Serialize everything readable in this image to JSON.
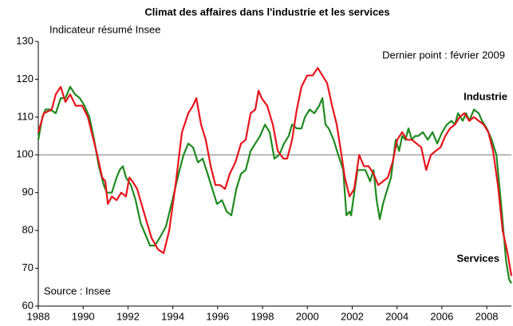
{
  "chart_data": {
    "type": "line",
    "title": "Climat des affaires dans l'industrie et les services",
    "ylabel": "Indicateur résumé Insee",
    "annotations": [
      "Dernier point : février 2009",
      "Source : Insee"
    ],
    "reference_line": 100,
    "xlim": [
      1988,
      2009.1
    ],
    "ylim": [
      60,
      130
    ],
    "xticks": [
      1988,
      1990,
      1992,
      1994,
      1996,
      1998,
      2000,
      2002,
      2004,
      2006,
      2008
    ],
    "yticks": [
      60,
      70,
      80,
      90,
      100,
      110,
      120,
      130
    ],
    "grid": false,
    "series": [
      {
        "name": "Industrie",
        "color": "#1f8a1f",
        "x": [
          1988.0,
          1988.18,
          1988.32,
          1988.53,
          1988.78,
          1989.0,
          1989.21,
          1989.42,
          1989.64,
          1989.85,
          1990.06,
          1990.28,
          1990.49,
          1990.7,
          1990.92,
          1991.06,
          1991.28,
          1991.49,
          1991.63,
          1991.77,
          1991.91,
          1992.13,
          1992.34,
          1992.56,
          1992.77,
          1992.98,
          1993.2,
          1993.41,
          1993.69,
          1993.98,
          1994.26,
          1994.48,
          1994.69,
          1994.9,
          1995.12,
          1995.33,
          1995.55,
          1995.76,
          1995.97,
          1996.19,
          1996.4,
          1996.61,
          1996.83,
          1997.04,
          1997.25,
          1997.47,
          1997.68,
          1997.89,
          1998.11,
          1998.32,
          1998.53,
          1998.75,
          1998.96,
          1999.17,
          1999.32,
          1999.53,
          1999.74,
          1999.89,
          2000.1,
          2000.31,
          2000.53,
          2000.67,
          2000.81,
          2000.95,
          2001.17,
          2001.38,
          2001.6,
          2001.74,
          2001.88,
          2001.95,
          2002.09,
          2002.24,
          2002.38,
          2002.59,
          2002.8,
          2002.95,
          2003.09,
          2003.23,
          2003.37,
          2003.52,
          2003.73,
          2003.94,
          2004.09,
          2004.23,
          2004.37,
          2004.51,
          2004.66,
          2004.8,
          2004.94,
          2005.15,
          2005.37,
          2005.58,
          2005.79,
          2006.01,
          2006.22,
          2006.43,
          2006.58,
          2006.72,
          2006.93,
          2007.08,
          2007.22,
          2007.43,
          2007.64,
          2007.79,
          2008.0,
          2008.22,
          2008.43,
          2008.64,
          2008.86,
          2009.0,
          2009.1
        ],
        "values": [
          104,
          110,
          112,
          112,
          111,
          115,
          115,
          118,
          116,
          115,
          113,
          110,
          104,
          97,
          92,
          90,
          90,
          94,
          96,
          97,
          94,
          92,
          88,
          82,
          79,
          76,
          76,
          78,
          81,
          88,
          95,
          100,
          103,
          102,
          98,
          99,
          95,
          91,
          87,
          88,
          85,
          84,
          91,
          95,
          96,
          101,
          103,
          105,
          108,
          106,
          99,
          100,
          103,
          105,
          108,
          107,
          107,
          110,
          112,
          111,
          113,
          115,
          108,
          107,
          104,
          100,
          96,
          84,
          85,
          84,
          90,
          96,
          96,
          96,
          93,
          96,
          88,
          83,
          87,
          90,
          94,
          104,
          101,
          105,
          104,
          107,
          104,
          105,
          105,
          106,
          104,
          106,
          103,
          106,
          108,
          109,
          108,
          111,
          109,
          111,
          109,
          112,
          111,
          109,
          107,
          104,
          100,
          87,
          72,
          67,
          66
        ]
      },
      {
        "name": "Services",
        "color": "#e8141c",
        "x": [
          1988.0,
          1988.25,
          1988.6,
          1988.78,
          1989.0,
          1989.21,
          1989.42,
          1989.67,
          1989.96,
          1990.21,
          1990.42,
          1990.63,
          1990.85,
          1990.99,
          1991.1,
          1991.28,
          1991.49,
          1991.7,
          1991.91,
          1992.06,
          1992.2,
          1992.41,
          1992.7,
          1993.05,
          1993.34,
          1993.59,
          1993.84,
          1994.12,
          1994.41,
          1994.69,
          1994.9,
          1995.05,
          1995.26,
          1995.47,
          1995.69,
          1995.9,
          1996.11,
          1996.33,
          1996.54,
          1996.79,
          1997.04,
          1997.25,
          1997.47,
          1997.68,
          1997.82,
          1997.96,
          1998.21,
          1998.46,
          1998.68,
          1998.93,
          1999.1,
          1999.32,
          1999.53,
          1999.74,
          1999.99,
          2000.24,
          2000.46,
          2000.67,
          2000.88,
          2001.1,
          2001.31,
          2001.52,
          2001.67,
          2001.88,
          2002.09,
          2002.31,
          2002.52,
          2002.73,
          2002.95,
          2003.16,
          2003.37,
          2003.59,
          2003.8,
          2004.01,
          2004.23,
          2004.44,
          2004.66,
          2004.87,
          2005.08,
          2005.3,
          2005.51,
          2005.72,
          2005.94,
          2006.15,
          2006.36,
          2006.58,
          2006.79,
          2007.0,
          2007.22,
          2007.43,
          2007.64,
          2007.86,
          2008.07,
          2008.28,
          2008.5,
          2008.71,
          2008.93,
          2009.1
        ],
        "values": [
          106,
          111,
          112,
          116,
          118,
          114,
          116,
          113,
          113,
          110,
          105,
          100,
          94,
          93,
          87,
          89,
          88,
          90,
          89,
          94,
          93,
          91,
          85,
          78,
          75,
          74,
          80,
          92,
          106,
          111,
          113,
          115,
          108,
          104,
          97,
          92,
          92,
          91,
          95,
          98,
          103,
          104,
          111,
          112,
          117,
          115,
          113,
          108,
          101,
          99,
          99,
          104,
          112,
          118,
          121,
          121,
          123,
          121,
          119,
          113,
          108,
          100,
          94,
          89,
          91,
          100,
          97,
          97,
          95,
          92,
          93,
          94,
          98,
          104,
          106,
          104,
          104,
          103,
          102,
          96,
          100,
          101,
          102,
          105,
          107,
          108,
          110,
          111,
          109,
          110,
          109,
          108,
          106,
          101,
          92,
          80,
          74,
          68
        ]
      }
    ]
  }
}
